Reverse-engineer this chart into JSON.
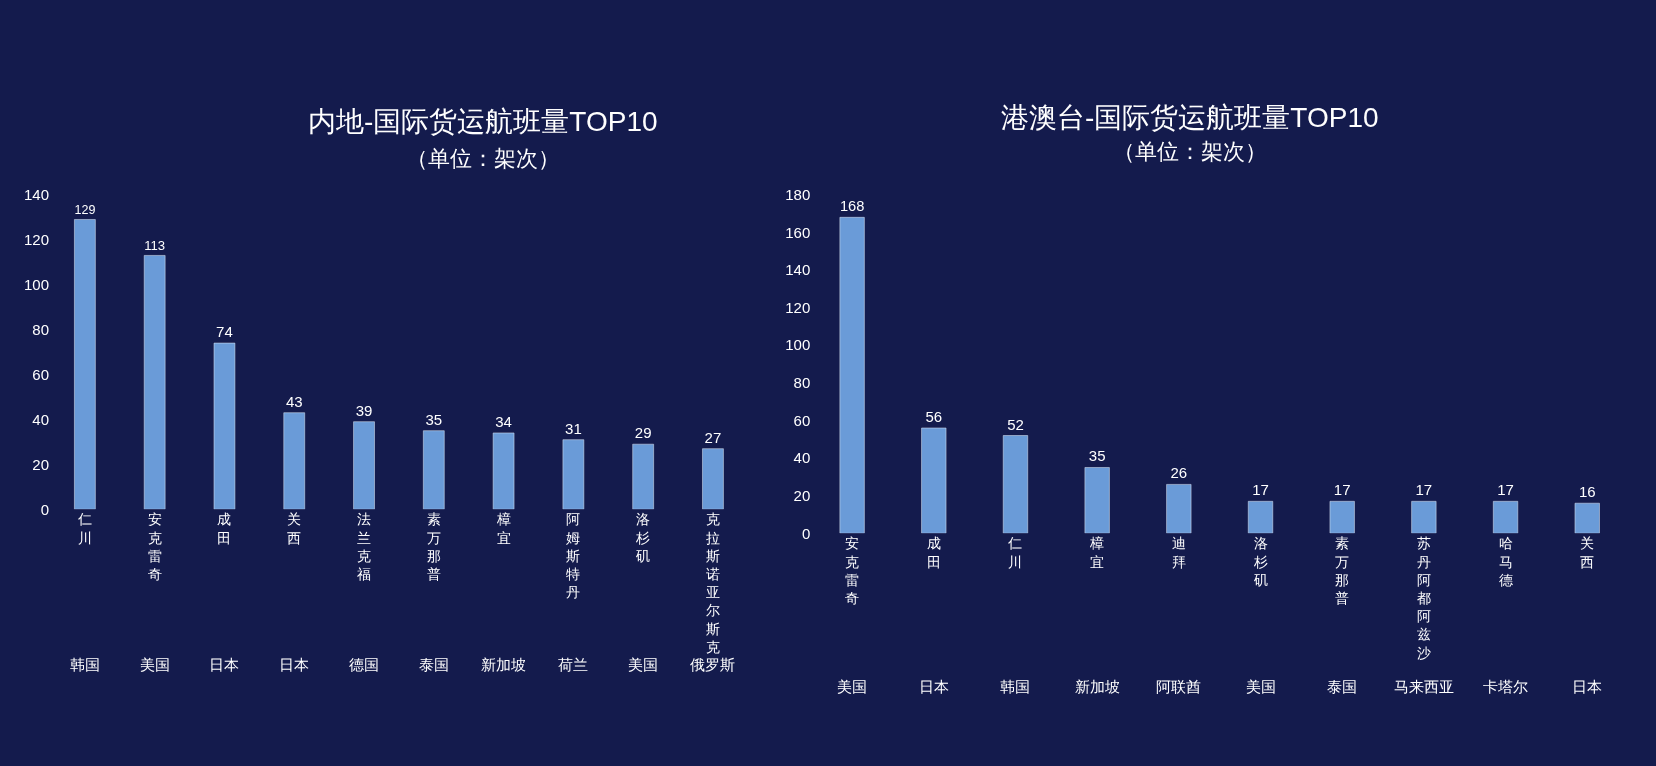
{
  "chart_data": [
    {
      "type": "bar",
      "title": "内地-国际货运航班量TOP10",
      "subtitle": "（单位：架次）",
      "categories": [
        "仁川",
        "安克雷奇",
        "成田",
        "关西",
        "法兰克福",
        "素万那普",
        "樟宜",
        "阿姆斯特丹",
        "洛杉矶",
        "克拉斯诺亚尔斯克"
      ],
      "annotations": [
        "韩国",
        "美国",
        "日本",
        "日本",
        "德国",
        "泰国",
        "新加坡",
        "荷兰",
        "美国",
        "俄罗斯"
      ],
      "values": [
        129,
        113,
        74,
        43,
        39,
        35,
        34,
        31,
        29,
        27
      ],
      "color": "#6a9bd8",
      "ylim": [
        0,
        140
      ],
      "yticks": [
        0,
        20,
        40,
        60,
        80,
        100,
        120,
        140
      ],
      "data_labels": true,
      "grid": false
    },
    {
      "type": "bar",
      "title": "港澳台-国际货运航班量TOP10",
      "subtitle": "（单位：架次）",
      "categories": [
        "安克雷奇",
        "成田",
        "仁川",
        "樟宜",
        "迪拜",
        "洛杉矶",
        "素万那普",
        "苏丹阿都阿兹沙",
        "哈马德",
        "关西"
      ],
      "annotations": [
        "美国",
        "日本",
        "韩国",
        "新加坡",
        "阿联酋",
        "美国",
        "泰国",
        "马来西亚",
        "卡塔尔",
        "日本"
      ],
      "values": [
        168,
        56,
        52,
        35,
        26,
        17,
        17,
        17,
        17,
        16
      ],
      "color": "#6a9bd8",
      "ylim": [
        0,
        180
      ],
      "yticks": [
        0,
        20,
        40,
        60,
        80,
        100,
        120,
        140,
        160,
        180
      ],
      "data_labels": true,
      "grid": false
    }
  ]
}
